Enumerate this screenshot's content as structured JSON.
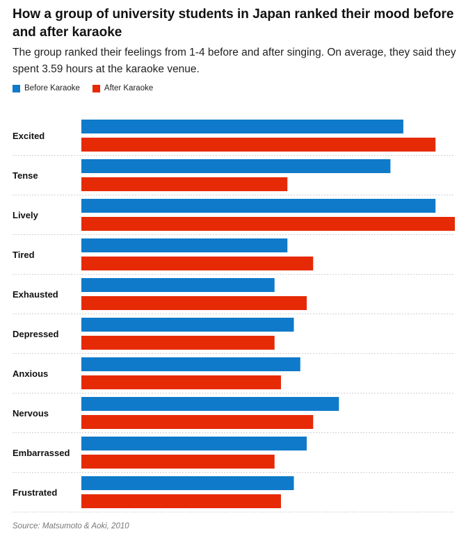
{
  "title": "How a group of university students in Japan ranked their mood before and after karaoke",
  "subtitle": "The group ranked their feelings from 1-4 before and after singing. On average, they said they spent 3.59 hours at the karaoke venue.",
  "source": "Source: Matsumoto & Aoki, 2010",
  "colors": {
    "before": "#0f7ac9",
    "after": "#e62a06",
    "gridline": "#cfcfcf"
  },
  "chart_data": {
    "type": "bar",
    "orientation": "horizontal",
    "title": "How a group of university students in Japan ranked their mood before and after karaoke",
    "categories": [
      "Excited",
      "Tense",
      "Lively",
      "Tired",
      "Exhausted",
      "Depressed",
      "Anxious",
      "Nervous",
      "Embarrassed",
      "Frustrated"
    ],
    "series": [
      {
        "name": "Before Karaoke",
        "values": [
          2.5,
          2.4,
          2.75,
          1.6,
          1.5,
          1.65,
          1.7,
          2.0,
          1.75,
          1.65
        ]
      },
      {
        "name": "After Karaoke",
        "values": [
          2.75,
          1.6,
          2.9,
          1.8,
          1.75,
          1.5,
          1.55,
          1.8,
          1.5,
          1.55
        ]
      }
    ],
    "xlim": [
      0,
      2.9
    ],
    "legend_position": "top-left",
    "grid": false
  }
}
